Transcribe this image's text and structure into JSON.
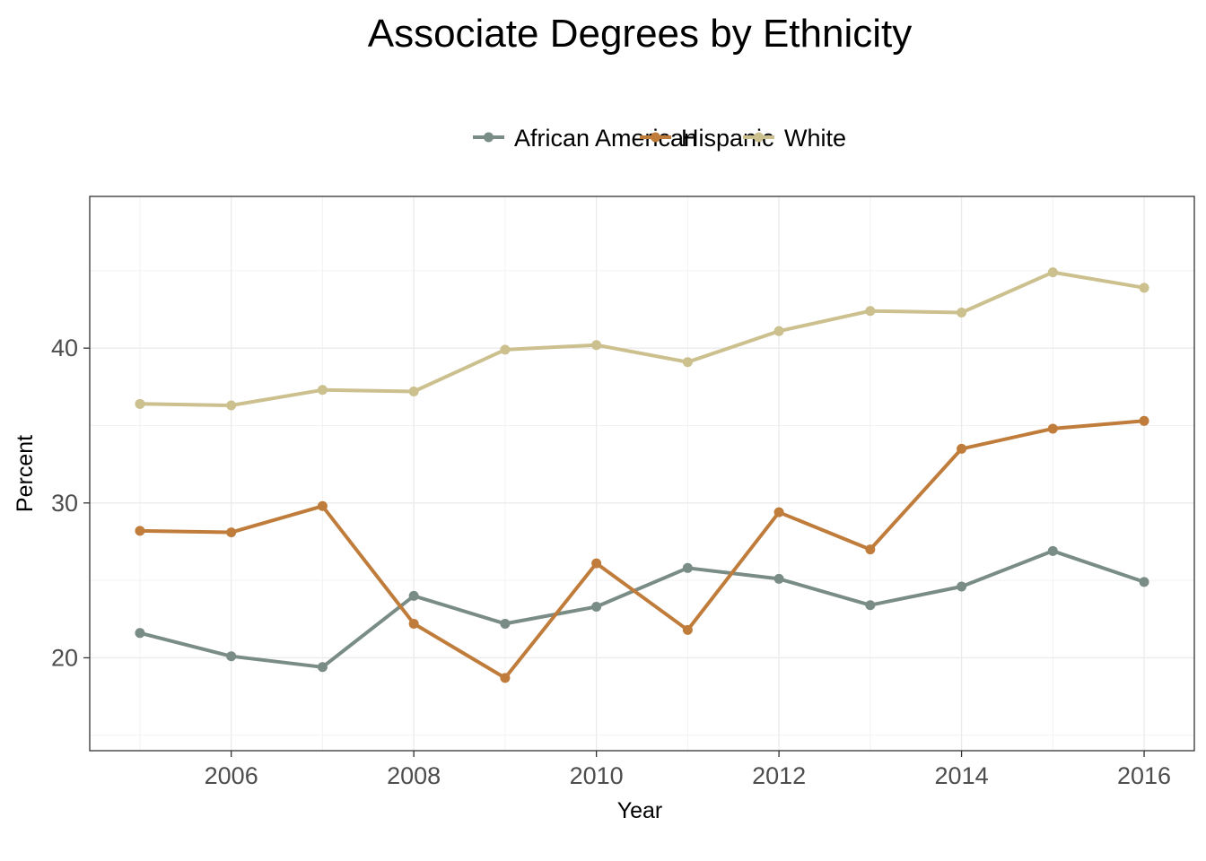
{
  "chart_data": {
    "type": "line",
    "title": "Associate Degrees by Ethnicity",
    "xlabel": "Year",
    "ylabel": "Percent",
    "x": [
      2005,
      2006,
      2007,
      2008,
      2009,
      2010,
      2011,
      2012,
      2013,
      2014,
      2015,
      2016
    ],
    "xlim": [
      2004.45,
      2016.55
    ],
    "ylim": [
      14.0,
      49.8
    ],
    "xticks": [
      2006,
      2008,
      2010,
      2012,
      2014,
      2016
    ],
    "yticks": [
      20,
      30,
      40
    ],
    "grid": true,
    "legend_position": "top",
    "series": [
      {
        "name": "African American",
        "color": "#7a8c86",
        "values": [
          21.6,
          20.1,
          19.4,
          24.0,
          22.2,
          23.3,
          25.8,
          25.1,
          23.4,
          24.6,
          26.9,
          24.9
        ]
      },
      {
        "name": "Hispanic",
        "color": "#c07c3b",
        "values": [
          28.2,
          28.1,
          29.8,
          22.2,
          18.7,
          26.1,
          21.8,
          29.4,
          27.0,
          33.5,
          34.8,
          35.3
        ]
      },
      {
        "name": "White",
        "color": "#cbc08e",
        "values": [
          36.4,
          36.3,
          37.3,
          37.2,
          39.9,
          40.2,
          39.1,
          41.1,
          42.4,
          42.3,
          44.9,
          43.9
        ]
      }
    ]
  }
}
